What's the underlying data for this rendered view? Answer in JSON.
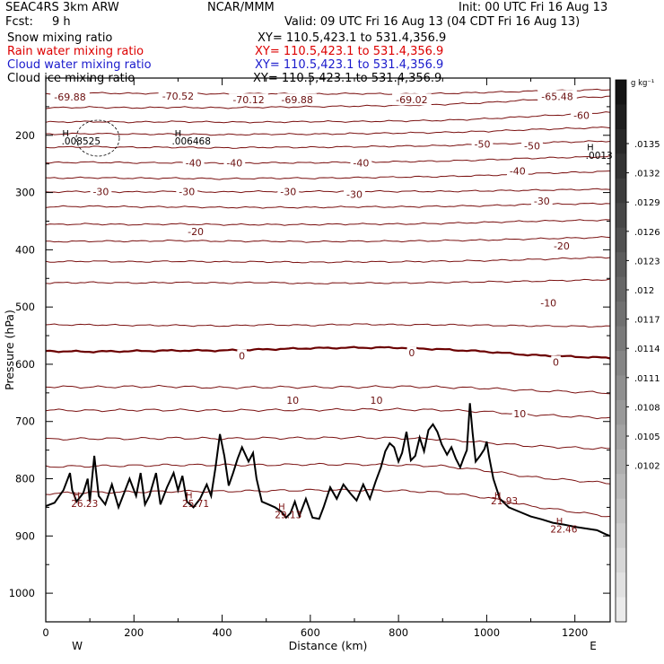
{
  "header": {
    "model": "SEAC4RS   3km ARW",
    "org": "NCAR/MMM",
    "init": "Init: 00 UTC Fri 16 Aug 13",
    "fcst_label": "Fcst:",
    "fcst_value": "9 h",
    "valid": "Valid: 09 UTC Fri 16 Aug 13 (04 CDT Fri 16 Aug 13)",
    "fields": [
      {
        "label": "Snow mixing ratio",
        "xy": "XY= 110.5,423.1 to 531.4,356.9",
        "color": "#000000"
      },
      {
        "label": "Rain water mixing ratio",
        "xy": "XY= 110.5,423.1 to 531.4,356.9",
        "color": "#dd0000"
      },
      {
        "label": "Cloud water mixing ratio",
        "xy": "XY= 110.5,423.1 to 531.4,356.9",
        "color": "#1a1acc"
      },
      {
        "label": "Cloud ice mixing ratio",
        "xy": "XY= 110.5,423.1 to 531.4,356.9",
        "color": "#000000"
      }
    ]
  },
  "chart_data": {
    "type": "contour",
    "xlabel": "Distance (km)",
    "ylabel": "Pressure (hPa)",
    "xlim": [
      0,
      1280
    ],
    "ylim": [
      1050,
      100
    ],
    "x_ticks": [
      0,
      200,
      400,
      600,
      800,
      1000,
      1200
    ],
    "y_ticks": [
      200,
      300,
      400,
      500,
      600,
      700,
      800,
      900,
      1000
    ],
    "x_end_labels": {
      "left": "W",
      "right": "E"
    },
    "temperature_contour_color": "#7a1010",
    "zero_contour_color": "#6b0000",
    "contour_labels": [
      {
        "text": "-69.88",
        "x": 55,
        "p": 133
      },
      {
        "text": "-70.52",
        "x": 300,
        "p": 131
      },
      {
        "text": "-70.12",
        "x": 460,
        "p": 138
      },
      {
        "text": "-69.88",
        "x": 570,
        "p": 138
      },
      {
        "text": "-69.02",
        "x": 830,
        "p": 138
      },
      {
        "text": "-65.48",
        "x": 1160,
        "p": 132
      },
      {
        "text": "-60",
        "x": 1215,
        "p": 165
      },
      {
        "text": "-50",
        "x": 990,
        "p": 215
      },
      {
        "text": "-50",
        "x": 1103,
        "p": 218
      },
      {
        "text": "-40",
        "x": 335,
        "p": 248
      },
      {
        "text": "-40",
        "x": 428,
        "p": 248
      },
      {
        "text": "-40",
        "x": 715,
        "p": 248
      },
      {
        "text": "-40",
        "x": 1070,
        "p": 262
      },
      {
        "text": "-30",
        "x": 125,
        "p": 298
      },
      {
        "text": "-30",
        "x": 320,
        "p": 298
      },
      {
        "text": "-30",
        "x": 550,
        "p": 298
      },
      {
        "text": "-30",
        "x": 700,
        "p": 303
      },
      {
        "text": "-30",
        "x": 1125,
        "p": 315
      },
      {
        "text": "-20",
        "x": 340,
        "p": 368
      },
      {
        "text": "-20",
        "x": 1170,
        "p": 393
      },
      {
        "text": "-10",
        "x": 1140,
        "p": 493
      },
      {
        "text": "0",
        "x": 445,
        "p": 585
      },
      {
        "text": "0",
        "x": 830,
        "p": 580
      },
      {
        "text": "0",
        "x": 1157,
        "p": 596
      },
      {
        "text": "10",
        "x": 560,
        "p": 663
      },
      {
        "text": "10",
        "x": 750,
        "p": 663
      },
      {
        "text": "10",
        "x": 1075,
        "p": 686
      }
    ],
    "extrema": [
      {
        "mark": "H",
        "value": "",
        "x": 45,
        "p": 196
      },
      {
        "mark": "",
        "value": ".008525",
        "x": 80,
        "p": 210
      },
      {
        "mark": "H",
        "value": "",
        "x": 300,
        "p": 196
      },
      {
        "mark": "",
        "value": ".006468",
        "x": 330,
        "p": 210
      },
      {
        "mark": "H",
        "value": "",
        "x": 1235,
        "p": 220
      },
      {
        "mark": "",
        "value": ".0013",
        "x": 1255,
        "p": 235
      },
      {
        "mark": "H",
        "value": "",
        "x": 70,
        "p": 828
      },
      {
        "mark": "",
        "value": "26.23",
        "x": 88,
        "p": 843
      },
      {
        "mark": "H",
        "value": "",
        "x": 325,
        "p": 828
      },
      {
        "mark": "",
        "value": "25.71",
        "x": 340,
        "p": 843
      },
      {
        "mark": "H",
        "value": "",
        "x": 535,
        "p": 848
      },
      {
        "mark": "",
        "value": "29.13",
        "x": 550,
        "p": 863
      },
      {
        "mark": "H",
        "value": "",
        "x": 1025,
        "p": 828
      },
      {
        "mark": "",
        "value": "21.93",
        "x": 1040,
        "p": 838
      },
      {
        "mark": "H",
        "value": "",
        "x": 1165,
        "p": 873
      },
      {
        "mark": "",
        "value": "22.46",
        "x": 1175,
        "p": 888
      }
    ],
    "temperature_levels": [
      {
        "level": -70,
        "p": [
          127,
          126,
          127,
          126,
          128,
          127,
          128,
          127,
          128,
          127,
          125,
          123,
          120
        ]
      },
      {
        "level": -65,
        "p": [
          152,
          151,
          152,
          151,
          152,
          151,
          150,
          149,
          148,
          146,
          143,
          138,
          132
        ]
      },
      {
        "level": -60,
        "p": [
          177,
          176,
          177,
          176,
          177,
          177,
          176,
          176,
          175,
          174,
          171,
          167,
          160
        ]
      },
      {
        "level": -55,
        "p": [
          198,
          197,
          198,
          198,
          199,
          198,
          198,
          197,
          196,
          195,
          193,
          190,
          186
        ]
      },
      {
        "level": -50,
        "p": [
          221,
          220,
          221,
          221,
          222,
          221,
          221,
          220,
          219,
          218,
          216,
          213,
          210
        ]
      },
      {
        "level": -45,
        "p": [
          248,
          247,
          248,
          248,
          249,
          248,
          248,
          247,
          246,
          245,
          243,
          240,
          237
        ]
      },
      {
        "level": -40,
        "p": [
          275,
          274,
          275,
          275,
          276,
          275,
          275,
          274,
          273,
          272,
          270,
          267,
          263
        ]
      },
      {
        "level": -35,
        "p": [
          299,
          298,
          299,
          298,
          299,
          298,
          298,
          298,
          298,
          298,
          297,
          296,
          294
        ]
      },
      {
        "level": -30,
        "p": [
          325,
          324,
          325,
          325,
          326,
          326,
          326,
          325,
          325,
          324,
          323,
          321,
          319
        ]
      },
      {
        "level": -25,
        "p": [
          356,
          355,
          356,
          355,
          356,
          356,
          356,
          355,
          355,
          354,
          352,
          350,
          348
        ]
      },
      {
        "level": -20,
        "p": [
          386,
          385,
          385,
          384,
          385,
          385,
          386,
          385,
          385,
          384,
          383,
          381,
          378
        ]
      },
      {
        "level": -15,
        "p": [
          421,
          420,
          421,
          420,
          421,
          421,
          422,
          421,
          421,
          420,
          419,
          417,
          413
        ]
      },
      {
        "level": -10,
        "p": [
          458,
          457,
          458,
          457,
          458,
          457,
          459,
          458,
          458,
          457,
          456,
          455,
          452
        ]
      },
      {
        "level": -5,
        "p": [
          531,
          531,
          532,
          532,
          533,
          531,
          532,
          530,
          531,
          531,
          532,
          533,
          534
        ]
      },
      {
        "level": 0,
        "p": [
          577,
          578,
          577,
          576,
          576,
          574,
          572,
          571,
          571,
          574,
          578,
          584,
          589
        ]
      },
      {
        "level": 5,
        "p": [
          639,
          640,
          639,
          639,
          641,
          640,
          640,
          640,
          639,
          640,
          642,
          646,
          650
        ]
      },
      {
        "level": 10,
        "p": [
          680,
          681,
          680,
          680,
          681,
          680,
          680,
          679,
          679,
          680,
          683,
          688,
          694
        ]
      },
      {
        "level": 15,
        "p": [
          731,
          730,
          730,
          729,
          730,
          729,
          729,
          728,
          729,
          731,
          737,
          743,
          748
        ]
      },
      {
        "level": 20,
        "p": [
          779,
          778,
          777,
          776,
          776,
          776,
          775,
          775,
          776,
          778,
          786,
          797,
          808
        ]
      },
      {
        "level": 25,
        "p": [
          826,
          824,
          823,
          822,
          822,
          821,
          820,
          820,
          821,
          824,
          833,
          848,
          866
        ]
      }
    ],
    "contour_x": [
      0,
      100,
      200,
      300,
      400,
      500,
      600,
      700,
      800,
      900,
      1000,
      1100,
      1280
    ],
    "terrain_profile": [
      [
        0,
        848
      ],
      [
        20,
        842
      ],
      [
        40,
        820
      ],
      [
        55,
        790
      ],
      [
        60,
        820
      ],
      [
        70,
        840
      ],
      [
        85,
        825
      ],
      [
        95,
        800
      ],
      [
        100,
        840
      ],
      [
        110,
        760
      ],
      [
        120,
        830
      ],
      [
        135,
        845
      ],
      [
        150,
        810
      ],
      [
        165,
        850
      ],
      [
        180,
        820
      ],
      [
        190,
        800
      ],
      [
        205,
        830
      ],
      [
        215,
        790
      ],
      [
        225,
        845
      ],
      [
        235,
        830
      ],
      [
        250,
        790
      ],
      [
        260,
        845
      ],
      [
        275,
        815
      ],
      [
        290,
        790
      ],
      [
        300,
        820
      ],
      [
        310,
        795
      ],
      [
        320,
        840
      ],
      [
        335,
        850
      ],
      [
        350,
        835
      ],
      [
        365,
        810
      ],
      [
        375,
        830
      ],
      [
        385,
        780
      ],
      [
        395,
        722
      ],
      [
        405,
        760
      ],
      [
        415,
        812
      ],
      [
        425,
        790
      ],
      [
        435,
        765
      ],
      [
        445,
        745
      ],
      [
        460,
        770
      ],
      [
        470,
        755
      ],
      [
        478,
        800
      ],
      [
        490,
        840
      ],
      [
        505,
        845
      ],
      [
        520,
        850
      ],
      [
        535,
        858
      ],
      [
        545,
        868
      ],
      [
        555,
        860
      ],
      [
        565,
        840
      ],
      [
        575,
        865
      ],
      [
        590,
        835
      ],
      [
        605,
        868
      ],
      [
        620,
        870
      ],
      [
        630,
        850
      ],
      [
        645,
        815
      ],
      [
        660,
        835
      ],
      [
        675,
        810
      ],
      [
        690,
        825
      ],
      [
        705,
        838
      ],
      [
        720,
        810
      ],
      [
        735,
        835
      ],
      [
        748,
        805
      ],
      [
        760,
        780
      ],
      [
        770,
        752
      ],
      [
        780,
        738
      ],
      [
        790,
        745
      ],
      [
        800,
        770
      ],
      [
        808,
        755
      ],
      [
        818,
        718
      ],
      [
        828,
        768
      ],
      [
        838,
        760
      ],
      [
        848,
        728
      ],
      [
        858,
        752
      ],
      [
        868,
        715
      ],
      [
        878,
        705
      ],
      [
        888,
        718
      ],
      [
        898,
        740
      ],
      [
        910,
        758
      ],
      [
        920,
        745
      ],
      [
        930,
        765
      ],
      [
        940,
        780
      ],
      [
        948,
        763
      ],
      [
        955,
        750
      ],
      [
        962,
        668
      ],
      [
        968,
        720
      ],
      [
        975,
        770
      ],
      [
        985,
        760
      ],
      [
        995,
        748
      ],
      [
        1000,
        735
      ],
      [
        1005,
        760
      ],
      [
        1015,
        800
      ],
      [
        1030,
        835
      ],
      [
        1050,
        850
      ],
      [
        1075,
        858
      ],
      [
        1100,
        866
      ],
      [
        1125,
        871
      ],
      [
        1150,
        877
      ],
      [
        1175,
        880
      ],
      [
        1200,
        884
      ],
      [
        1225,
        887
      ],
      [
        1250,
        890
      ],
      [
        1270,
        897
      ],
      [
        1280,
        900
      ]
    ],
    "colorbar": {
      "unit": "g kg⁻¹",
      "ticks": [
        ".0135",
        ".0132",
        ".0129",
        ".0126",
        ".0123",
        ".012",
        ".0117",
        ".0114",
        ".0111",
        ".0108",
        ".0105",
        ".0102"
      ]
    }
  }
}
